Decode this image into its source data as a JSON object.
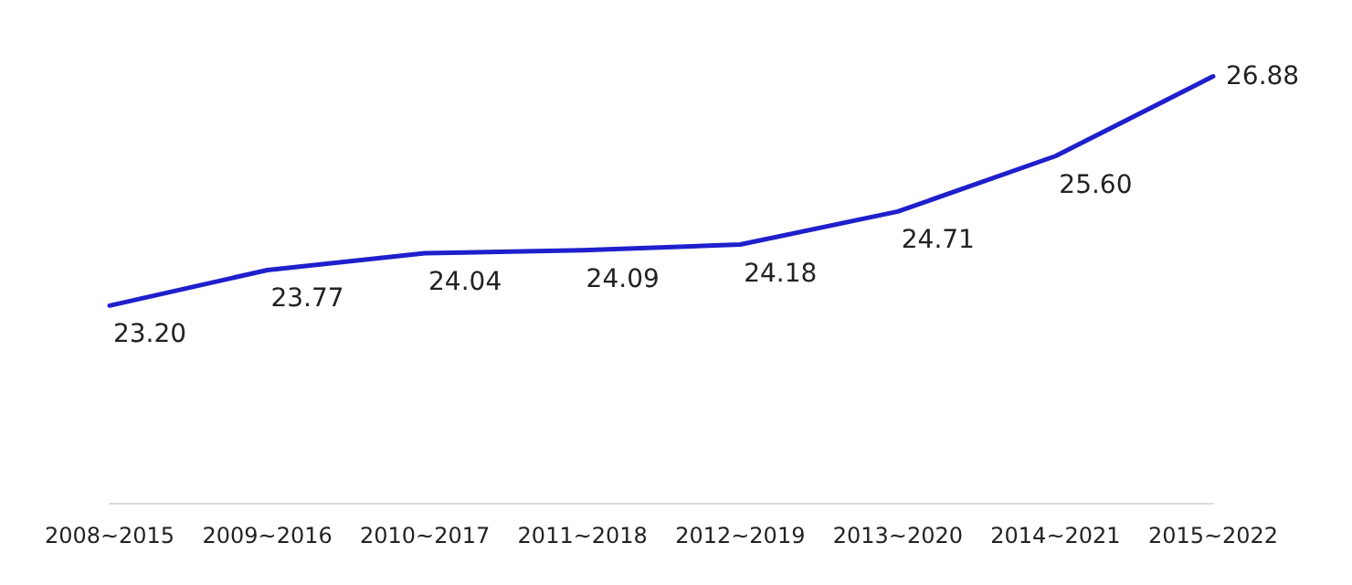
{
  "chart_data": {
    "type": "line",
    "categories": [
      "2008~2015",
      "2009~2016",
      "2010~2017",
      "2011~2018",
      "2012~2019",
      "2013~2020",
      "2014~2021",
      "2015~2022"
    ],
    "series": [
      {
        "color": "#1f1fcc",
        "values": [
          23.2,
          23.77,
          24.04,
          24.09,
          24.18,
          24.71,
          25.6,
          26.88
        ],
        "value_labels": [
          "23.20",
          "23.77",
          "24.04",
          "24.09",
          "24.18",
          "24.71",
          "25.60",
          "26.88"
        ]
      }
    ],
    "tick_labels": "x",
    "grid": false,
    "marker": "none",
    "line_style": "solid"
  }
}
